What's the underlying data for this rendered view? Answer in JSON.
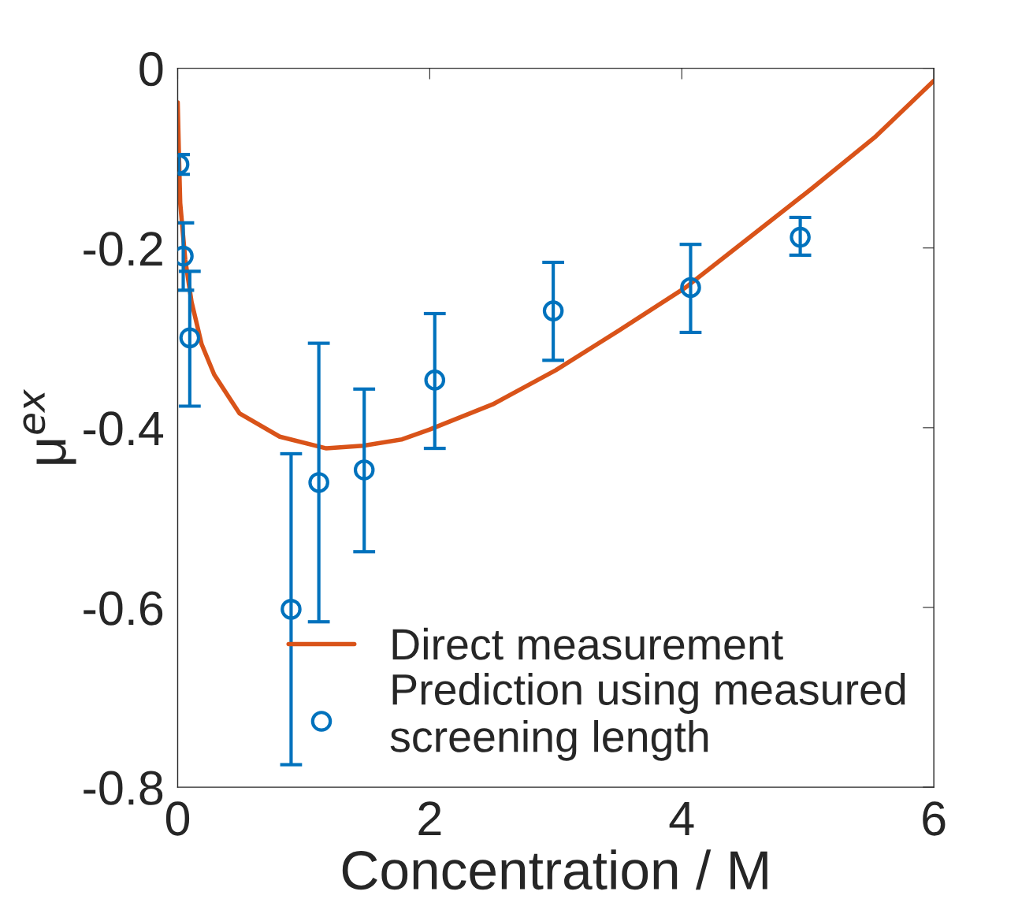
{
  "chart_data": {
    "type": "line",
    "xlabel": "Concentration / M",
    "ylabel": "μ$^{ex}$",
    "xlim": [
      0,
      6
    ],
    "xticks": [
      0,
      2,
      4,
      6
    ],
    "ylim": [
      -0.8,
      0
    ],
    "yticks": [
      {
        "value": -0.8,
        "label": "-0.8"
      },
      {
        "value": -0.6,
        "label": "-0.6"
      },
      {
        "value": -0.4,
        "label": "-0.4"
      },
      {
        "value": -0.2,
        "label": "-0.2"
      },
      0
    ],
    "grid": false,
    "legend": "bottom right",
    "series": [
      {
        "name": "Direct measurement",
        "color": "#d95319",
        "marker": "none",
        "line_style": "solid",
        "x": [
          0.0,
          0.01,
          0.02,
          0.06,
          0.11,
          0.19,
          0.29,
          0.49,
          0.81,
          1.18,
          1.47,
          1.78,
          2.0,
          2.5,
          3.0,
          3.5,
          4.03,
          4.53,
          5.03,
          5.53,
          6.0
        ],
        "values": [
          -0.038,
          -0.097,
          -0.15,
          -0.213,
          -0.26,
          -0.307,
          -0.341,
          -0.384,
          -0.41,
          -0.423,
          -0.42,
          -0.413,
          -0.402,
          -0.374,
          -0.336,
          -0.292,
          -0.244,
          -0.189,
          -0.134,
          -0.077,
          -0.014
        ]
      },
      {
        "name": "Prediction using measured\nscreening length",
        "type": "scatter",
        "color": "#0072bd",
        "marker": "circle",
        "x": [
          0.01,
          0.044,
          0.096,
          0.9,
          1.12,
          1.48,
          2.04,
          2.98,
          4.07,
          4.94
        ],
        "values": [
          -0.107,
          -0.209,
          -0.3,
          -0.602,
          -0.461,
          -0.447,
          -0.347,
          -0.27,
          -0.244,
          -0.188
        ],
        "errors": [
          [
            -0.118,
            -0.096
          ],
          [
            -0.247,
            -0.172
          ],
          [
            -0.376,
            -0.226
          ],
          [
            -0.775,
            -0.429
          ],
          [
            -0.616,
            -0.306
          ],
          [
            -0.538,
            -0.357
          ],
          [
            -0.423,
            -0.273
          ],
          [
            -0.325,
            -0.216
          ],
          [
            -0.294,
            -0.196
          ],
          [
            -0.208,
            -0.166
          ]
        ]
      }
    ]
  }
}
